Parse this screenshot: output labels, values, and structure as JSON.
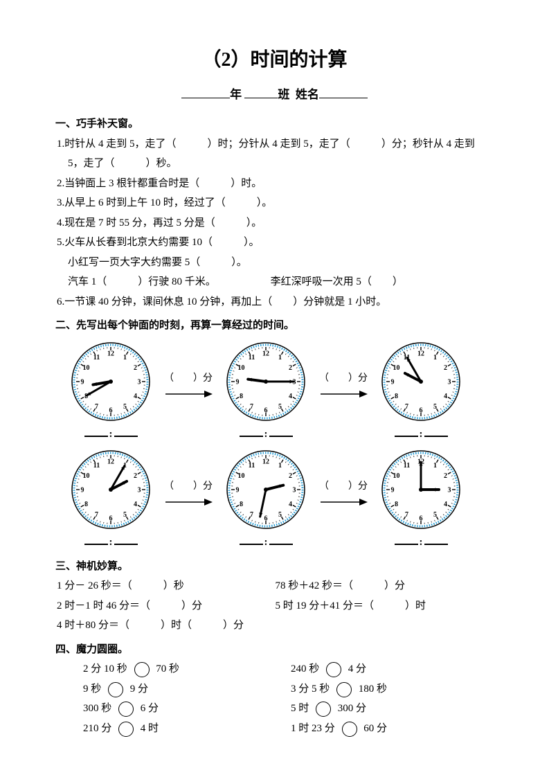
{
  "title": "（2）时间的计算",
  "header": {
    "year": "年",
    "class": "班",
    "name": "姓名"
  },
  "section1": {
    "head": "一、巧手补天窗。",
    "q1a": "1.时针从 4 走到 5，走了（",
    "q1b": "）时；分针从 4 走到 5，走了（",
    "q1c": "）分；秒针从 4 走到",
    "q1d": "5，走了（",
    "q1e": "）秒。",
    "q2a": "2.当钟面上 3 根针都重合时是（",
    "q2b": "）时。",
    "q3a": "3.从早上 6 时到上午 10 时，经过了（",
    "q3b": "）。",
    "q4a": "4.现在是 7 时 55 分，再过 5 分是（",
    "q4b": "）。",
    "q5a": "5.火车从长春到北京大约需要 10（",
    "q5b": "）。",
    "q5c": "小红写一页大字大约需要 5（",
    "q5d": "）。",
    "q5e": "汽车 1（",
    "q5f": "）行驶 80 千米。",
    "q5g": "李红深呼吸一次用 5（",
    "q5h": "）",
    "q6a": "6.一节课 40 分钟，课间休息 10 分钟，再加上（",
    "q6b": "）分钟就是 1 小时。"
  },
  "section2": {
    "head": "二、先写出每个钟面的时刻，再算一算经过的时间。",
    "fen": "（　　）分",
    "clocks": [
      {
        "hour": 8,
        "minute": 40,
        "dotted": true
      },
      {
        "hour": 9,
        "minute": 15,
        "dotted": true
      },
      {
        "hour": 9,
        "minute": 55,
        "dotted": true
      },
      {
        "hour": 2,
        "minute": 5,
        "dotted": true
      },
      {
        "hour": 2,
        "minute": 32,
        "dotted": true
      },
      {
        "hour": 3,
        "minute": 0,
        "dotted": true
      }
    ],
    "clock_style": {
      "rim_color": "#2a9fd6",
      "face_color": "#ffffff",
      "number_color": "#000000",
      "hand_color": "#000000",
      "outer_r": 56,
      "inner_r": 49,
      "tick_r": 50,
      "num_r": 41,
      "number_fontsize": 10,
      "hour_hand_len": 26,
      "min_hand_len": 40,
      "hand_width": 3
    }
  },
  "section3": {
    "head": "三、神机妙算。",
    "rows": [
      {
        "l": "1 分－ 26 秒＝（　　　）秒",
        "r": "78 秒＋42 秒＝（　　　）分"
      },
      {
        "l": "2 时－1 时 46 分＝（　　　）分",
        "r": "5 时 19 分＋41 分＝（　　　）时"
      },
      {
        "l": "4 时＋80 分＝（　　　）时（　　　）分",
        "r": ""
      }
    ]
  },
  "section4": {
    "head": "四、魔力圆圈。",
    "rows": [
      {
        "la": "2 分 10 秒",
        "lb": "70 秒",
        "ra": "240 秒",
        "rb": "4 分"
      },
      {
        "la": "9 秒",
        "lb": "9 分",
        "ra": "3 分 5 秒",
        "rb": "180 秒"
      },
      {
        "la": "300 秒",
        "lb": "6 分",
        "ra": "5 时",
        "rb": "300 分"
      },
      {
        "la": "210 分",
        "lb": "4 时",
        "ra": "1 时 23 分",
        "rb": "60 分"
      }
    ]
  }
}
